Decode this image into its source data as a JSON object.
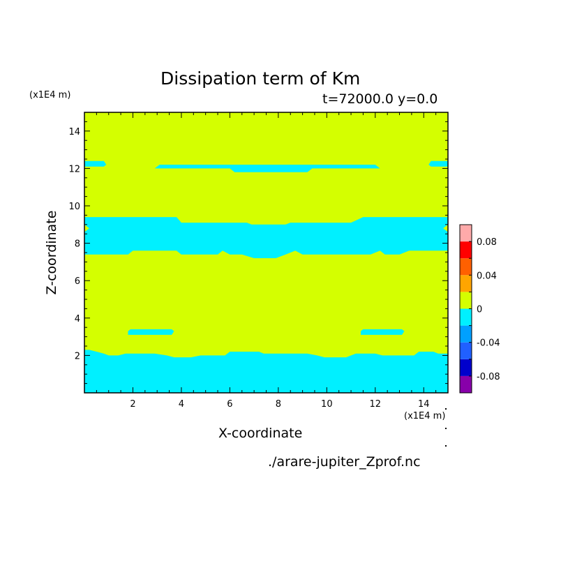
{
  "chart_data": {
    "type": "heatmap",
    "title": "Dissipation term of Km",
    "subtitle": "t=72000.0 y=0.0",
    "xlabel": "X-coordinate",
    "ylabel": "Z-coordinate",
    "x_unit": "(x1E4 m)",
    "y_unit": "(x1E4 m)",
    "xlim": [
      0,
      15
    ],
    "ylim": [
      0,
      15
    ],
    "x_ticks": [
      "2",
      "4",
      "6",
      "8",
      "10",
      "12",
      "14"
    ],
    "y_ticks": [
      "2",
      "4",
      "6",
      "8",
      "10",
      "12",
      "14"
    ],
    "grid": false,
    "legend": "right",
    "footer": "./arare-jupiter_Zprof.nc",
    "colorbar": {
      "levels": [
        -0.1,
        -0.08,
        -0.06,
        -0.04,
        -0.02,
        0,
        0.02,
        0.04,
        0.06,
        0.08,
        0.1
      ],
      "colors": [
        "#8800aa",
        "#0000cc",
        "#2060ff",
        "#00a0ff",
        "#00f0ff",
        "#d4ff00",
        "#ffa500",
        "#ff6000",
        "#ff0000",
        "#ffaaaa"
      ],
      "labels": [
        "0.08",
        "0.04",
        "0",
        "-0.04",
        "-0.08"
      ]
    },
    "background_value_color": "#d4ff00",
    "negative_region_color": "#00f0ff",
    "regions": [
      {
        "value_range": [
          -0.02,
          0
        ],
        "description": "bottom band",
        "polygon": [
          [
            0,
            0
          ],
          [
            15,
            0
          ],
          [
            15,
            2.1
          ],
          [
            14.6,
            2.1
          ],
          [
            14.4,
            2.2
          ],
          [
            13.8,
            2.2
          ],
          [
            13.6,
            2.0
          ],
          [
            12.3,
            2.0
          ],
          [
            12.0,
            2.1
          ],
          [
            11.2,
            2.1
          ],
          [
            11.0,
            2.0
          ],
          [
            10.8,
            1.9
          ],
          [
            9.9,
            1.9
          ],
          [
            9.6,
            2.0
          ],
          [
            9.2,
            2.1
          ],
          [
            7.4,
            2.1
          ],
          [
            7.2,
            2.2
          ],
          [
            6.0,
            2.2
          ],
          [
            5.8,
            2.0
          ],
          [
            4.8,
            2.0
          ],
          [
            4.4,
            1.9
          ],
          [
            3.7,
            1.9
          ],
          [
            3.4,
            2.0
          ],
          [
            2.9,
            2.1
          ],
          [
            1.7,
            2.1
          ],
          [
            1.4,
            2.0
          ],
          [
            1.0,
            2.0
          ],
          [
            0.8,
            2.1
          ],
          [
            0.5,
            2.2
          ],
          [
            0.2,
            2.3
          ],
          [
            0,
            2.3
          ]
        ]
      },
      {
        "value_range": [
          -0.02,
          0
        ],
        "description": "middle band",
        "polygon": [
          [
            0,
            7.4
          ],
          [
            1.8,
            7.4
          ],
          [
            2.0,
            7.6
          ],
          [
            3.8,
            7.6
          ],
          [
            4.0,
            7.4
          ],
          [
            5.5,
            7.4
          ],
          [
            5.7,
            7.6
          ],
          [
            6.0,
            7.4
          ],
          [
            6.5,
            7.4
          ],
          [
            7.0,
            7.2
          ],
          [
            7.9,
            7.2
          ],
          [
            8.3,
            7.4
          ],
          [
            8.7,
            7.6
          ],
          [
            9.0,
            7.4
          ],
          [
            11.8,
            7.4
          ],
          [
            12.2,
            7.6
          ],
          [
            12.4,
            7.4
          ],
          [
            13.0,
            7.4
          ],
          [
            13.4,
            7.6
          ],
          [
            15,
            7.6
          ],
          [
            15,
            8.6
          ],
          [
            14.8,
            8.8
          ],
          [
            15,
            9.0
          ],
          [
            15,
            9.4
          ],
          [
            13.3,
            9.4
          ],
          [
            11.5,
            9.4
          ],
          [
            11.0,
            9.1
          ],
          [
            8.5,
            9.1
          ],
          [
            8.3,
            9.0
          ],
          [
            6.9,
            9.0
          ],
          [
            6.7,
            9.1
          ],
          [
            4.0,
            9.1
          ],
          [
            3.8,
            9.4
          ],
          [
            0,
            9.4
          ],
          [
            0,
            9.0
          ],
          [
            0.2,
            8.8
          ],
          [
            0,
            8.6
          ]
        ]
      },
      {
        "value_range": [
          -0.02,
          0
        ],
        "description": "upper band",
        "polygon": [
          [
            2.9,
            12.0
          ],
          [
            3.1,
            12.2
          ],
          [
            12.0,
            12.2
          ],
          [
            12.2,
            12.0
          ],
          [
            9.4,
            12.0
          ],
          [
            9.2,
            11.8
          ],
          [
            6.2,
            11.8
          ],
          [
            6.0,
            12.0
          ]
        ]
      },
      {
        "value_range": [
          -0.02,
          0
        ],
        "description": "upper-left blob",
        "polygon": [
          [
            0,
            12.1
          ],
          [
            0,
            12.4
          ],
          [
            0.8,
            12.4
          ],
          [
            0.9,
            12.2
          ],
          [
            0.8,
            12.1
          ]
        ]
      },
      {
        "value_range": [
          -0.02,
          0
        ],
        "description": "upper-right blob",
        "polygon": [
          [
            15,
            12.1
          ],
          [
            15,
            12.4
          ],
          [
            14.3,
            12.4
          ],
          [
            14.2,
            12.2
          ],
          [
            14.3,
            12.1
          ]
        ]
      },
      {
        "value_range": [
          -0.02,
          0
        ],
        "description": "lower-left blob",
        "polygon": [
          [
            1.8,
            3.1
          ],
          [
            3.6,
            3.1
          ],
          [
            3.7,
            3.3
          ],
          [
            3.6,
            3.4
          ],
          [
            1.9,
            3.4
          ],
          [
            1.8,
            3.3
          ]
        ]
      },
      {
        "value_range": [
          -0.02,
          0
        ],
        "description": "lower-right blob",
        "polygon": [
          [
            11.4,
            3.1
          ],
          [
            13.1,
            3.1
          ],
          [
            13.2,
            3.3
          ],
          [
            13.1,
            3.4
          ],
          [
            11.5,
            3.4
          ],
          [
            11.4,
            3.3
          ]
        ]
      }
    ]
  }
}
